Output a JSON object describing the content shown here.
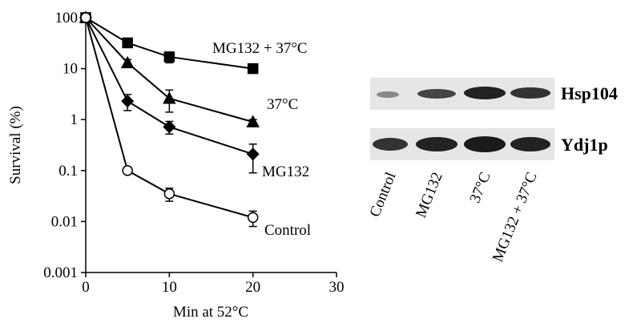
{
  "chart_data": {
    "type": "line",
    "x_label": "Min at 52°C",
    "y_label": "Survival (%)",
    "x": [
      0,
      5,
      10,
      20
    ],
    "series": [
      {
        "name": "MG132 + 37°C",
        "color": "#000000",
        "marker": "square",
        "filled": true,
        "values": [
          100,
          32,
          17,
          10
        ],
        "errors": [
          8,
          4,
          4,
          1.5
        ]
      },
      {
        "name": "37°C",
        "color": "#000000",
        "marker": "triangle",
        "filled": true,
        "values": [
          100,
          13,
          2.6,
          0.9
        ],
        "errors": [
          8,
          2,
          1.2,
          0.1
        ]
      },
      {
        "name": "MG132",
        "color": "#000000",
        "marker": "diamond",
        "filled": true,
        "values": [
          100,
          2.3,
          0.72,
          0.21
        ],
        "errors": [
          8,
          0.8,
          0.2,
          0.12
        ]
      },
      {
        "name": "Control",
        "color": "#000000",
        "marker": "circle",
        "filled": false,
        "values": [
          100,
          0.1,
          0.035,
          0.012
        ],
        "errors": [
          8,
          0.01,
          0.01,
          0.004
        ]
      }
    ],
    "xlim": [
      0,
      30
    ],
    "xticks": [
      0,
      10,
      20,
      30
    ],
    "ylim": [
      0.001,
      100
    ],
    "yticks": [
      0.001,
      0.01,
      0.1,
      1,
      10,
      100
    ],
    "log_y": true,
    "blot": {
      "rows": [
        "Hsp104",
        "Ydj1p"
      ],
      "lanes": [
        "Control",
        "MG132",
        "37°C",
        "MG132 + 37°C"
      ]
    }
  }
}
